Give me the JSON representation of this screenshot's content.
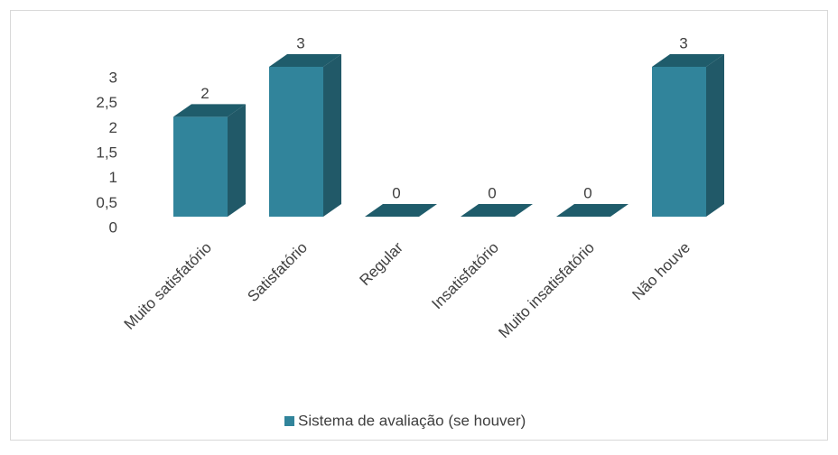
{
  "chart_data": {
    "type": "bar3d",
    "categories": [
      "Muito satisfatório",
      "Satisfatório",
      "Regular",
      "Insatisfatório",
      "Muito insatisfatório",
      "Não houve"
    ],
    "series": [
      {
        "name": "Sistema de avaliação (se houver)",
        "color": "#31849b",
        "values": [
          2,
          3,
          0,
          0,
          0,
          3
        ]
      }
    ],
    "ylim": [
      0,
      3
    ],
    "yticks": [
      0,
      {
        "value": 0.5,
        "label": "0,5"
      },
      1,
      {
        "value": 1.5,
        "label": "1,5"
      },
      2,
      {
        "value": 2.5,
        "label": "2,5"
      },
      3
    ],
    "legend": "bottom"
  }
}
